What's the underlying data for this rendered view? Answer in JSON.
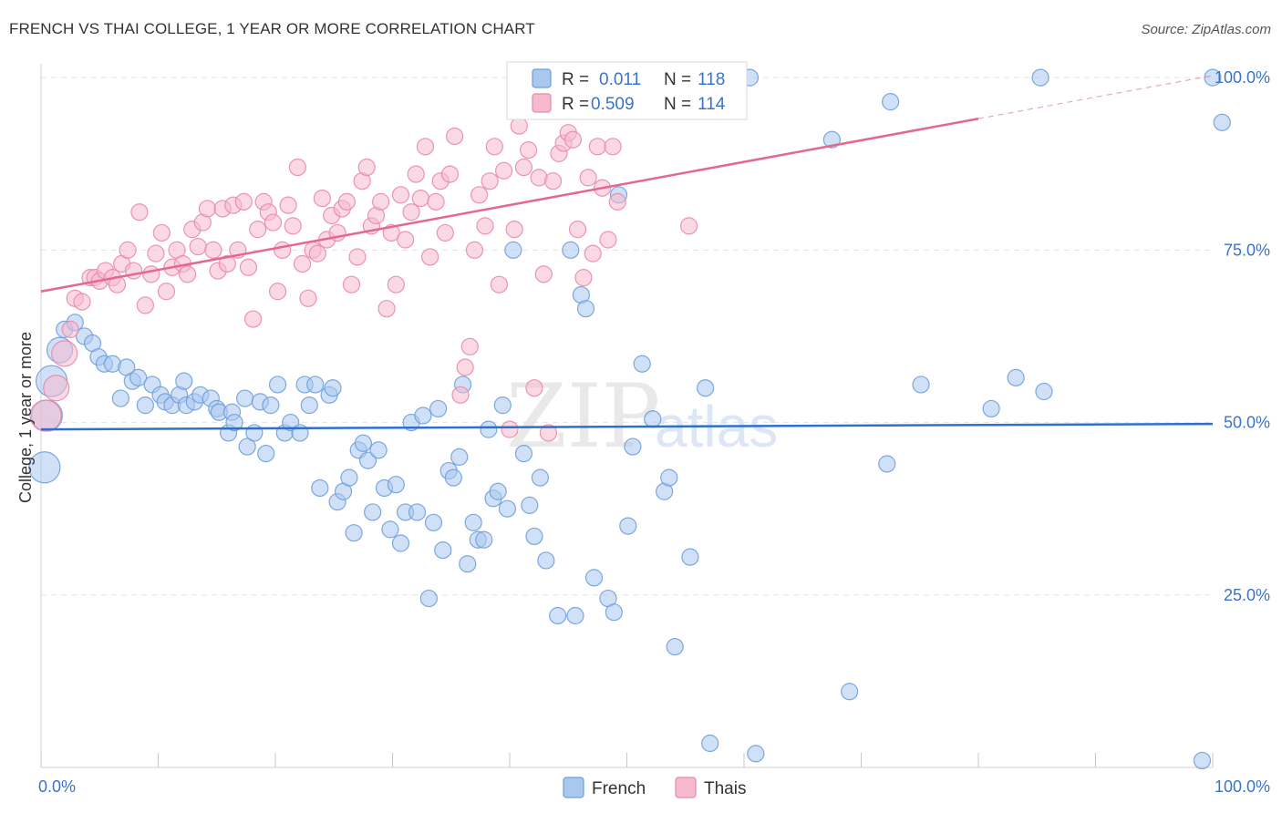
{
  "title": "FRENCH VS THAI COLLEGE, 1 YEAR OR MORE CORRELATION CHART",
  "source": "Source: ZipAtlas.com",
  "watermark": {
    "zip": "ZIP",
    "atlas": "atlas"
  },
  "colors": {
    "french_fill": "#a9c8f0",
    "french_stroke": "#6f9edc",
    "french_line": "#2f6fce",
    "thai_fill": "#f7b9cd",
    "thai_stroke": "#e88aa8",
    "thai_line": "#e4678f",
    "axis_text": "#3a74c9",
    "grid": "#e2e2e2"
  },
  "legend": {
    "r_label": "R =",
    "n_label": "N =",
    "rows": [
      {
        "series": "French",
        "r": "0.011",
        "n": "118"
      },
      {
        "series": "Thais",
        "r": "0.509",
        "n": "114"
      }
    ]
  },
  "chart_data": {
    "type": "scatter",
    "title": "FRENCH VS THAI COLLEGE, 1 YEAR OR MORE CORRELATION CHART",
    "xlabel": "",
    "ylabel": "College, 1 year or more",
    "xlim": [
      0,
      100
    ],
    "ylim": [
      0,
      102
    ],
    "x_tick_labels": [
      "0.0%",
      "100.0%"
    ],
    "y_ticks": [
      25,
      50,
      75,
      100
    ],
    "y_tick_labels": [
      "25.0%",
      "50.0%",
      "75.0%",
      "100.0%"
    ],
    "grid": true,
    "legend_position": "top-center",
    "series": [
      {
        "name": "French",
        "trend": {
          "x0": 0,
          "y0": 49.0,
          "x1": 100,
          "y1": 49.8
        },
        "points": [
          [
            0.3,
            43.5
          ],
          [
            0.5,
            51
          ],
          [
            0.9,
            56
          ],
          [
            1.6,
            60.5
          ],
          [
            2.0,
            63.5
          ],
          [
            2.9,
            64.5
          ],
          [
            3.7,
            62.5
          ],
          [
            4.4,
            61.5
          ],
          [
            4.9,
            59.5
          ],
          [
            5.4,
            58.5
          ],
          [
            6.1,
            58.5
          ],
          [
            7.3,
            58
          ],
          [
            7.8,
            56
          ],
          [
            8.3,
            56.5
          ],
          [
            6.8,
            53.5
          ],
          [
            8.9,
            52.5
          ],
          [
            9.5,
            55.5
          ],
          [
            10.2,
            54
          ],
          [
            10.6,
            53
          ],
          [
            11.2,
            52.5
          ],
          [
            11.8,
            54
          ],
          [
            12.2,
            56
          ],
          [
            12.4,
            52.5
          ],
          [
            13.1,
            53
          ],
          [
            13.6,
            54
          ],
          [
            14.5,
            53.5
          ],
          [
            15.0,
            52
          ],
          [
            15.2,
            51.5
          ],
          [
            16.3,
            51.5
          ],
          [
            16.0,
            48.5
          ],
          [
            16.5,
            50
          ],
          [
            17.4,
            53.5
          ],
          [
            17.6,
            46.5
          ],
          [
            18.2,
            48.5
          ],
          [
            18.7,
            53
          ],
          [
            19.2,
            45.5
          ],
          [
            19.6,
            52.5
          ],
          [
            20.2,
            55.5
          ],
          [
            20.8,
            48.5
          ],
          [
            21.3,
            50
          ],
          [
            22.1,
            48.5
          ],
          [
            22.5,
            55.5
          ],
          [
            22.9,
            52.5
          ],
          [
            23.4,
            55.5
          ],
          [
            23.8,
            40.5
          ],
          [
            24.6,
            54
          ],
          [
            24.9,
            55
          ],
          [
            25.3,
            38.5
          ],
          [
            25.8,
            40
          ],
          [
            26.3,
            42
          ],
          [
            26.7,
            34
          ],
          [
            27.1,
            46
          ],
          [
            27.5,
            47
          ],
          [
            27.9,
            44.5
          ],
          [
            28.3,
            37
          ],
          [
            28.8,
            46
          ],
          [
            29.3,
            40.5
          ],
          [
            29.8,
            34.5
          ],
          [
            30.3,
            41
          ],
          [
            30.7,
            32.5
          ],
          [
            31.1,
            37
          ],
          [
            31.6,
            50
          ],
          [
            32.1,
            37
          ],
          [
            32.6,
            51
          ],
          [
            33.1,
            24.5
          ],
          [
            33.5,
            35.5
          ],
          [
            33.9,
            52
          ],
          [
            34.3,
            31.5
          ],
          [
            34.8,
            43
          ],
          [
            35.2,
            42
          ],
          [
            35.7,
            45
          ],
          [
            36.0,
            55.5
          ],
          [
            36.4,
            29.5
          ],
          [
            36.9,
            35.5
          ],
          [
            37.3,
            33
          ],
          [
            37.8,
            33
          ],
          [
            38.2,
            49
          ],
          [
            38.6,
            39
          ],
          [
            39.0,
            40
          ],
          [
            39.4,
            52.5
          ],
          [
            39.8,
            37.5
          ],
          [
            40.3,
            75
          ],
          [
            41.2,
            45.5
          ],
          [
            41.7,
            38
          ],
          [
            42.1,
            33.5
          ],
          [
            42.6,
            42
          ],
          [
            43.1,
            30
          ],
          [
            44.1,
            22
          ],
          [
            45.2,
            75
          ],
          [
            45.6,
            22
          ],
          [
            46.1,
            68.5
          ],
          [
            46.5,
            66.5
          ],
          [
            47.2,
            27.5
          ],
          [
            48.4,
            24.5
          ],
          [
            48.9,
            22.5
          ],
          [
            49.3,
            83
          ],
          [
            50.1,
            35
          ],
          [
            50.5,
            46.5
          ],
          [
            51.3,
            58.5
          ],
          [
            52.2,
            50.5
          ],
          [
            53.2,
            40
          ],
          [
            53.6,
            42
          ],
          [
            54.1,
            17.5
          ],
          [
            55.4,
            30.5
          ],
          [
            56.7,
            55
          ],
          [
            57.1,
            3.5
          ],
          [
            60.5,
            100
          ],
          [
            61.0,
            2
          ],
          [
            67.5,
            91
          ],
          [
            69.0,
            11
          ],
          [
            72.2,
            44
          ],
          [
            72.5,
            96.5
          ],
          [
            75.1,
            55.5
          ],
          [
            81.1,
            52
          ],
          [
            83.2,
            56.5
          ],
          [
            85.6,
            54.5
          ],
          [
            85.3,
            100
          ],
          [
            100,
            100
          ],
          [
            99.1,
            1
          ],
          [
            100.8,
            93.5
          ]
        ]
      },
      {
        "name": "Thais",
        "trend": {
          "x0": 0,
          "y0": 69.0,
          "x1": 100,
          "y1": 100.3,
          "solid_until_x": 80
        },
        "points": [
          [
            0.4,
            51
          ],
          [
            1.3,
            55
          ],
          [
            2.0,
            60
          ],
          [
            2.5,
            63.5
          ],
          [
            2.9,
            68
          ],
          [
            3.5,
            67.5
          ],
          [
            4.2,
            71
          ],
          [
            4.6,
            71
          ],
          [
            5.0,
            70.5
          ],
          [
            5.5,
            72
          ],
          [
            6.1,
            71
          ],
          [
            6.5,
            70
          ],
          [
            6.9,
            73
          ],
          [
            7.4,
            75
          ],
          [
            7.9,
            72
          ],
          [
            8.4,
            80.5
          ],
          [
            8.9,
            67
          ],
          [
            9.4,
            71.5
          ],
          [
            9.8,
            74.5
          ],
          [
            10.3,
            77.5
          ],
          [
            10.7,
            69
          ],
          [
            11.2,
            72.5
          ],
          [
            11.6,
            75
          ],
          [
            12.1,
            73
          ],
          [
            12.5,
            71.5
          ],
          [
            12.9,
            78
          ],
          [
            13.4,
            75.5
          ],
          [
            13.8,
            79
          ],
          [
            14.2,
            81
          ],
          [
            14.7,
            75
          ],
          [
            15.1,
            72
          ],
          [
            15.5,
            81
          ],
          [
            15.9,
            73
          ],
          [
            16.4,
            81.5
          ],
          [
            16.8,
            75
          ],
          [
            17.3,
            82
          ],
          [
            17.7,
            72.5
          ],
          [
            18.1,
            65
          ],
          [
            18.5,
            78
          ],
          [
            19.0,
            82
          ],
          [
            19.4,
            80.5
          ],
          [
            19.8,
            79
          ],
          [
            20.2,
            69
          ],
          [
            20.6,
            75
          ],
          [
            21.1,
            81.5
          ],
          [
            21.5,
            78.5
          ],
          [
            21.9,
            87
          ],
          [
            22.3,
            73
          ],
          [
            22.8,
            68
          ],
          [
            23.2,
            75
          ],
          [
            23.6,
            74.5
          ],
          [
            24.0,
            82.5
          ],
          [
            24.4,
            76.5
          ],
          [
            24.8,
            80
          ],
          [
            25.3,
            77.5
          ],
          [
            25.7,
            81
          ],
          [
            26.1,
            82
          ],
          [
            26.5,
            70
          ],
          [
            27.0,
            74
          ],
          [
            27.4,
            85
          ],
          [
            27.8,
            87
          ],
          [
            28.2,
            78.5
          ],
          [
            28.6,
            80
          ],
          [
            29.0,
            82
          ],
          [
            29.5,
            66.5
          ],
          [
            29.9,
            77.5
          ],
          [
            30.3,
            70
          ],
          [
            30.7,
            83
          ],
          [
            31.1,
            76.5
          ],
          [
            31.6,
            80.5
          ],
          [
            32.0,
            86
          ],
          [
            32.4,
            82.5
          ],
          [
            32.8,
            90
          ],
          [
            33.2,
            74
          ],
          [
            33.7,
            82
          ],
          [
            34.1,
            85
          ],
          [
            34.5,
            77.5
          ],
          [
            34.9,
            86
          ],
          [
            35.3,
            91.5
          ],
          [
            35.8,
            54
          ],
          [
            36.2,
            58
          ],
          [
            36.6,
            61
          ],
          [
            37.0,
            75
          ],
          [
            37.4,
            83
          ],
          [
            37.9,
            78.5
          ],
          [
            38.3,
            85
          ],
          [
            38.7,
            90
          ],
          [
            39.1,
            70
          ],
          [
            39.5,
            86.5
          ],
          [
            40.0,
            49
          ],
          [
            40.4,
            78
          ],
          [
            40.8,
            93
          ],
          [
            41.2,
            87
          ],
          [
            41.6,
            89.5
          ],
          [
            42.1,
            55
          ],
          [
            42.5,
            85.5
          ],
          [
            42.9,
            71.5
          ],
          [
            43.3,
            48.5
          ],
          [
            43.7,
            85
          ],
          [
            44.2,
            89
          ],
          [
            44.6,
            90.5
          ],
          [
            45.0,
            92
          ],
          [
            45.4,
            91
          ],
          [
            45.8,
            78
          ],
          [
            46.3,
            71
          ],
          [
            46.7,
            85.5
          ],
          [
            47.1,
            74.5
          ],
          [
            47.5,
            90
          ],
          [
            47.9,
            84
          ],
          [
            48.4,
            76.5
          ],
          [
            48.8,
            90
          ],
          [
            49.2,
            82
          ],
          [
            55.3,
            78.5
          ]
        ]
      }
    ]
  },
  "bottom_legend": [
    {
      "series": "French"
    },
    {
      "series": "Thais"
    }
  ]
}
